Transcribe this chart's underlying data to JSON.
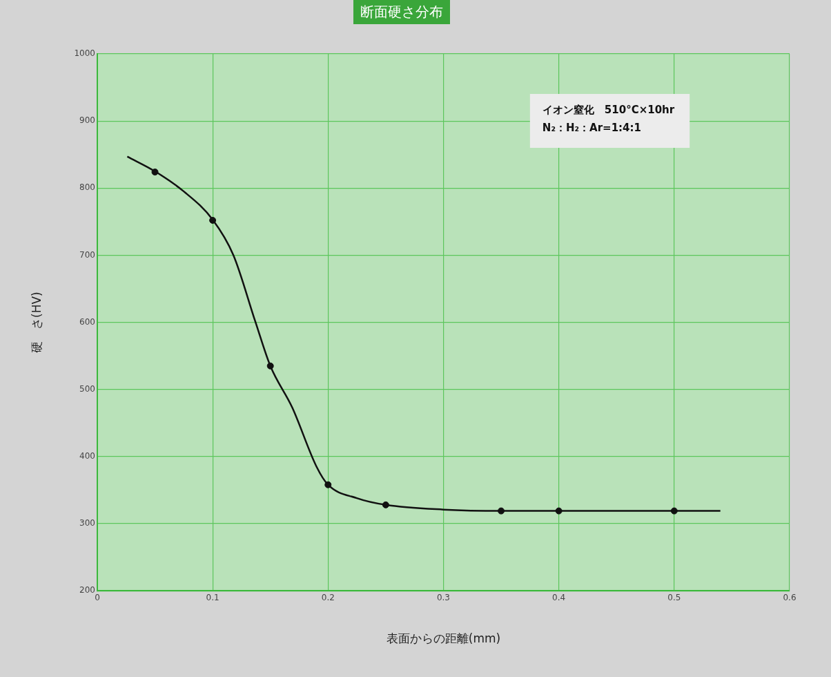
{
  "chart_data": {
    "type": "line",
    "title": "断面硬さ分布",
    "xlabel": "表面からの距離(mm)",
    "ylabel": "硬　さ(HV)",
    "xlim": [
      0,
      0.6
    ],
    "xticks": [
      0,
      0.1,
      0.2,
      0.3,
      0.4,
      0.5,
      0.6
    ],
    "ylim": [
      200,
      1000
    ],
    "yticks": [
      200,
      300,
      400,
      500,
      600,
      700,
      800,
      900,
      1000
    ],
    "grid": true,
    "series": [
      {
        "type": "line",
        "color": "#111111",
        "marker": "none",
        "x": [
          0.026,
          0.05,
          0.075,
          0.1,
          0.118,
          0.137,
          0.15,
          0.169,
          0.19,
          0.2,
          0.225,
          0.25,
          0.3,
          0.35,
          0.45,
          0.54
        ],
        "values": [
          847,
          825,
          795,
          753,
          700,
          601,
          535,
          473,
          385,
          358,
          338,
          328,
          321,
          319,
          319,
          319
        ]
      },
      {
        "type": "scatter",
        "color": "#111111",
        "marker": "circle",
        "x": [
          0.05,
          0.1,
          0.15,
          0.2,
          0.25,
          0.35,
          0.4,
          0.5
        ],
        "values": [
          824,
          752,
          535,
          358,
          328,
          319,
          319,
          319
        ]
      }
    ],
    "annotations": [
      "イオン窒化　510°C×10hr",
      "N₂：H₂：Ar=1:4:1"
    ]
  }
}
